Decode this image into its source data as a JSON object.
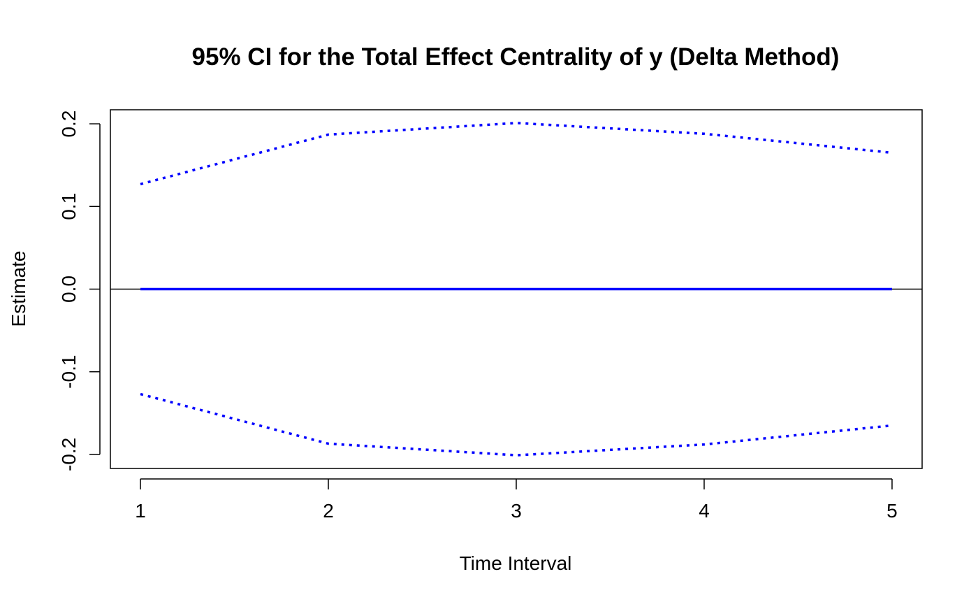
{
  "chart_data": {
    "type": "line",
    "title": "95% CI for the Total Effect Centrality of y (Delta Method)",
    "xlabel": "Time Interval",
    "ylabel": "Estimate",
    "x": [
      1,
      2,
      3,
      4,
      5
    ],
    "xlim": [
      0.84,
      5.16
    ],
    "ylim": [
      -0.217,
      0.217
    ],
    "x_ticks": [
      1,
      2,
      3,
      4,
      5
    ],
    "x_tick_labels": [
      "1",
      "2",
      "3",
      "4",
      "5"
    ],
    "y_ticks": [
      -0.2,
      -0.1,
      0.0,
      0.1,
      0.2
    ],
    "y_tick_labels": [
      "-0.2",
      "-0.1",
      "0.0",
      "0.1",
      "0.2"
    ],
    "grid": false,
    "reference_line": {
      "y": 0,
      "color": "#000000"
    },
    "series": [
      {
        "role": "estimate",
        "values": [
          0,
          0,
          0,
          0,
          0
        ],
        "color": "#0000ff",
        "style": "solid"
      },
      {
        "role": "upper",
        "values": [
          0.127,
          0.187,
          0.201,
          0.188,
          0.165
        ],
        "color": "#0000ff",
        "style": "dotted"
      },
      {
        "role": "lower",
        "values": [
          -0.127,
          -0.187,
          -0.201,
          -0.188,
          -0.165
        ],
        "color": "#0000ff",
        "style": "dotted"
      }
    ]
  }
}
